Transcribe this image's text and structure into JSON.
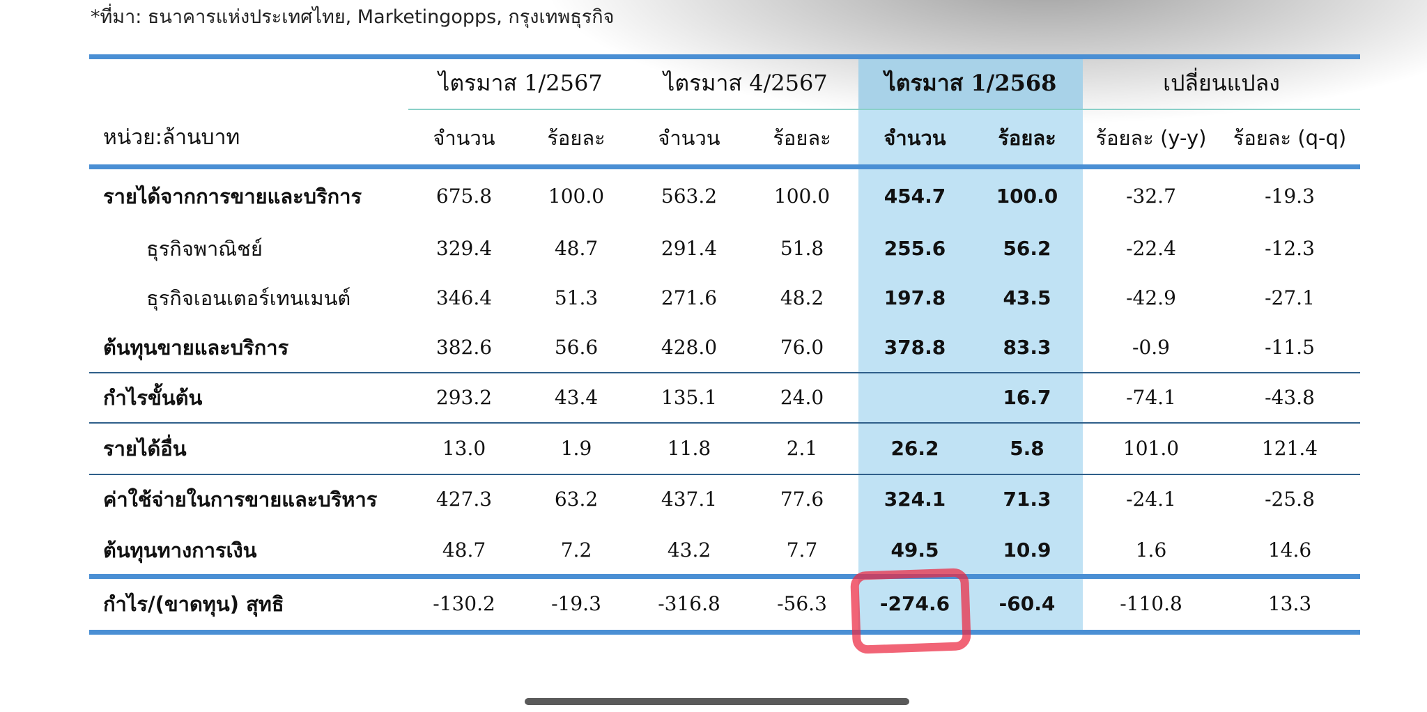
{
  "source_note": "*ที่มา: ธนาคารแห่งประเทศไทย, Marketingopps, กรุงเทพธุรกิจ",
  "header": {
    "unit_label": "หน่วย:ล้านบาท",
    "groups": [
      "ไตรมาส 1/2567",
      "ไตรมาส 4/2567",
      "ไตรมาส 1/2568",
      "เปลี่ยนแปลง"
    ],
    "subheaders": [
      "จำนวน",
      "ร้อยละ",
      "จำนวน",
      "ร้อยละ",
      "จำนวน",
      "ร้อยละ",
      "ร้อยละ (y-y)",
      "ร้อยละ (q-q)"
    ]
  },
  "rows": [
    {
      "label": "รายได้จากการขายและบริการ",
      "values": [
        "675.8",
        "100.0",
        "563.2",
        "100.0",
        "454.7",
        "100.0",
        "-32.7",
        "-19.3"
      ]
    },
    {
      "label": "ธุรกิจพาณิชย์",
      "values": [
        "329.4",
        "48.7",
        "291.4",
        "51.8",
        "255.6",
        "56.2",
        "-22.4",
        "-12.3"
      ]
    },
    {
      "label": "ธุรกิจเอนเตอร์เทนเมนต์",
      "values": [
        "346.4",
        "51.3",
        "271.6",
        "48.2",
        "197.8",
        "43.5",
        "-42.9",
        "-27.1"
      ]
    },
    {
      "label": "ต้นทุนขายและบริการ",
      "values": [
        "382.6",
        "56.6",
        "428.0",
        "76.0",
        "378.8",
        "83.3",
        "-0.9",
        "-11.5"
      ]
    },
    {
      "label": "กำไรขั้นต้น",
      "values": [
        "293.2",
        "43.4",
        "135.1",
        "24.0",
        "",
        "16.7",
        "-74.1",
        "-43.8"
      ]
    },
    {
      "label": "รายได้อื่น",
      "values": [
        "13.0",
        "1.9",
        "11.8",
        "2.1",
        "26.2",
        "5.8",
        "101.0",
        "121.4"
      ]
    },
    {
      "label": "ค่าใช้จ่ายในการขายและบริหาร",
      "values": [
        "427.3",
        "63.2",
        "437.1",
        "77.6",
        "324.1",
        "71.3",
        "-24.1",
        "-25.8"
      ]
    },
    {
      "label": "ต้นทุนทางการเงิน",
      "values": [
        "48.7",
        "7.2",
        "43.2",
        "7.7",
        "49.5",
        "10.9",
        "1.6",
        "14.6"
      ]
    },
    {
      "label": "กำไร/(ขาดทุน) สุทธิ",
      "values": [
        "-130.2",
        "-19.3",
        "-316.8",
        "-56.3",
        "-274.6",
        "-60.4",
        "-110.8",
        "13.3"
      ]
    }
  ],
  "colors": {
    "accent_rule": "#4a8fd4",
    "highlight_column": "#c0e2f4",
    "annotation_mark": "#eb2841"
  }
}
